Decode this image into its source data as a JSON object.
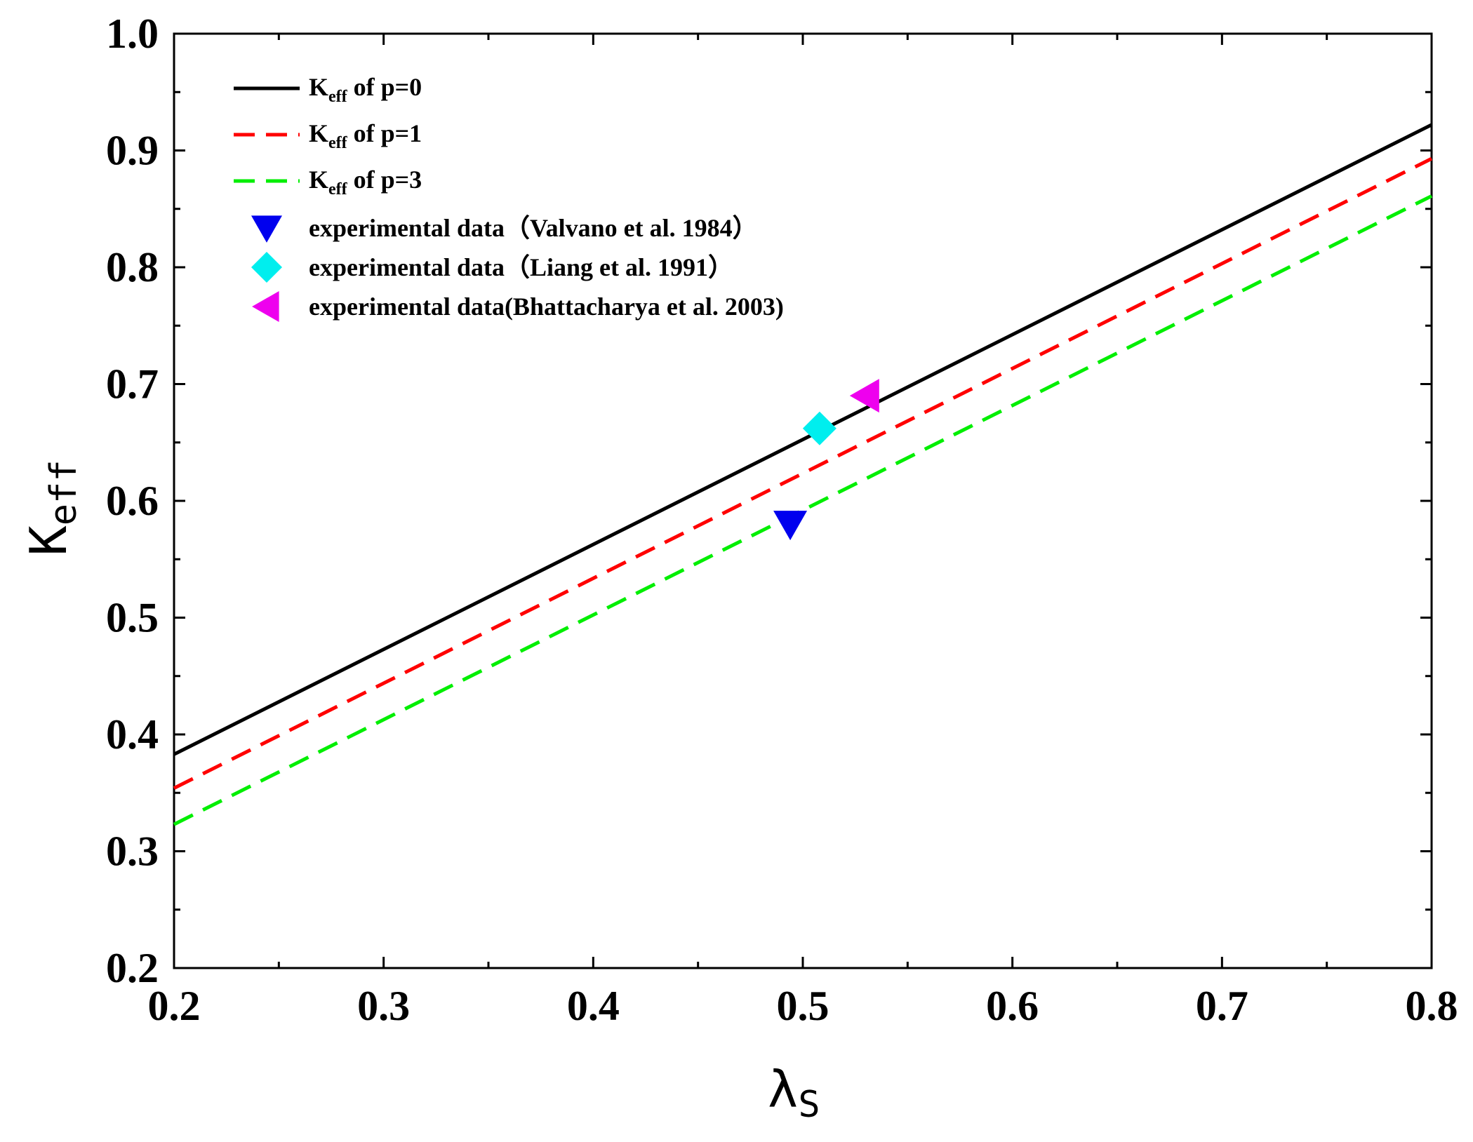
{
  "chart_data": {
    "type": "line",
    "title": "",
    "xlabel": {
      "main": "λ",
      "sub": "S"
    },
    "ylabel": {
      "main": "K",
      "sub": "eff"
    },
    "xlim": [
      0.2,
      0.8
    ],
    "ylim": [
      0.2,
      1.0
    ],
    "x_ticks": [
      "0.2",
      "0.3",
      "0.4",
      "0.5",
      "0.6",
      "0.7",
      "0.8"
    ],
    "y_ticks": [
      "0.2",
      "0.3",
      "0.4",
      "0.5",
      "0.6",
      "0.7",
      "0.8",
      "0.9",
      "1.0"
    ],
    "grid": false,
    "legend_position": "top-left",
    "series": [
      {
        "name": "Keff of p=0",
        "label_main": "K",
        "label_sub": "eff",
        "label_rest": " of p=0",
        "style": "solid",
        "color": "#000000",
        "x": [
          0.2,
          0.8
        ],
        "y": [
          0.383,
          0.922
        ]
      },
      {
        "name": "Keff of p=1",
        "label_main": "K",
        "label_sub": "eff",
        "label_rest": " of p=1",
        "style": "dashed",
        "color": "#ff0000",
        "x": [
          0.2,
          0.8
        ],
        "y": [
          0.354,
          0.893
        ]
      },
      {
        "name": "Keff of p=3",
        "label_main": "K",
        "label_sub": "eff",
        "label_rest": " of p=3",
        "style": "dashed",
        "color": "#00ee00",
        "x": [
          0.2,
          0.8
        ],
        "y": [
          0.323,
          0.861
        ]
      }
    ],
    "points": [
      {
        "name": "experimental data（Valvano et al. 1984）",
        "marker": "triangle-down",
        "color": "#0000ee",
        "x": 0.494,
        "y": 0.58
      },
      {
        "name": "experimental data（Liang et al. 1991）",
        "marker": "diamond",
        "color": "#00eeee",
        "x": 0.508,
        "y": 0.662
      },
      {
        "name": "experimental data(Bhattacharya et al. 2003)",
        "marker": "triangle-left",
        "color": "#ee00ee",
        "x": 0.53,
        "y": 0.69
      }
    ]
  }
}
